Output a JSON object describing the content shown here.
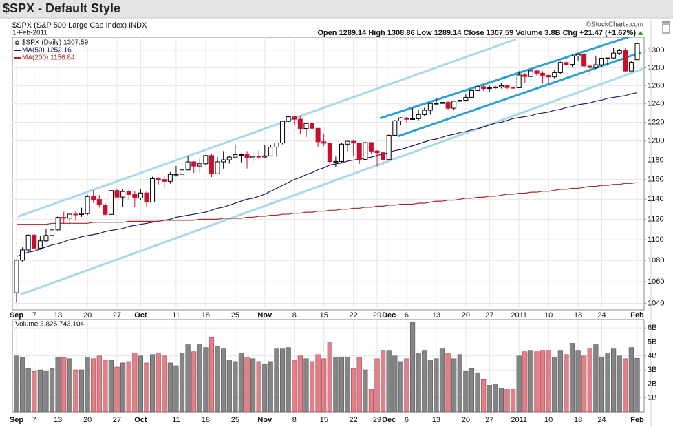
{
  "chart_data": {
    "type": "candlestick",
    "title": "$SPX - Default Style",
    "symbol_line": "$SPX (S&P 500 Large Cap Index) INDX",
    "source": "©StockCharts.com",
    "date": "1-Feb-2011",
    "quote": "Open 1289.14 High 1308.86 Low 1289.14 Close 1307.59 Volume 3.8B Chg +21.47 (+1.67%)",
    "categories": [
      "Sep",
      null,
      null,
      "7",
      null,
      null,
      null,
      "13",
      null,
      null,
      null,
      null,
      "20",
      null,
      null,
      null,
      null,
      "27",
      null,
      null,
      null,
      "Oct",
      null,
      null,
      null,
      null,
      null,
      "11",
      null,
      null,
      null,
      null,
      "18",
      null,
      null,
      null,
      null,
      "25",
      null,
      null,
      null,
      null,
      "Nov",
      null,
      null,
      null,
      null,
      "8",
      null,
      null,
      null,
      null,
      "15",
      null,
      null,
      null,
      null,
      "22",
      null,
      null,
      null,
      "29",
      null,
      "Dec",
      null,
      null,
      "6",
      null,
      null,
      null,
      null,
      "13",
      null,
      null,
      null,
      null,
      "20",
      null,
      null,
      null,
      "27",
      null,
      null,
      null,
      null,
      "2011",
      null,
      null,
      null,
      null,
      "10",
      null,
      null,
      null,
      null,
      "18",
      null,
      null,
      null,
      "24",
      null,
      null,
      null,
      null,
      null,
      "Feb"
    ],
    "price": {
      "name": "$SPX (Daily) 1307.59",
      "up_color": "#000000",
      "down_color": "#c8102e",
      "open": [
        1049.72,
        1080.29,
        1090.1,
        1104.51,
        1091.84,
        1098.87,
        1104.18,
        1109.55,
        1121.9,
        1121.1,
        1125.07,
        1124.66,
        1125.59,
        1142.71,
        1139.78,
        1134.28,
        1124.83,
        1148.67,
        1142.16,
        1147.7,
        1144.73,
        1141.2,
        1146.24,
        1137.03,
        1160.75,
        1159.97,
        1158.06,
        1165.15,
        1165.32,
        1169.77,
        1178.1,
        1173.81,
        1176.19,
        1184.71,
        1165.9,
        1178.17,
        1180.26,
        1183.08,
        1185.62,
        1185.64,
        1182.45,
        1183.78,
        1183.26,
        1184.38,
        1193.57,
        1197.96,
        1221.06,
        1225.85,
        1223.25,
        1213.4,
        1218.71,
        1213.54,
        1199.21,
        1197.75,
        1178.34,
        1178.59,
        1196.69,
        1199.73,
        1197.84,
        1180.73,
        1198.35,
        1189.4,
        1187.76,
        1180.55,
        1206.07,
        1221.53,
        1224.71,
        1223.12,
        1223.75,
        1228.28,
        1233.0,
        1240.4,
        1240.46,
        1241.59,
        1235.23,
        1242.87,
        1243.91,
        1247.08,
        1254.6,
        1258.84,
        1256.77,
        1257.54,
        1258.51,
        1259.78,
        1257.88,
        1257.64,
        1271.87,
        1270.2,
        1276.56,
        1273.85,
        1271.5,
        1269.75,
        1274.48,
        1285.96,
        1283.76,
        1293.24,
        1295.02,
        1281.92,
        1280.26,
        1283.35,
        1290.84,
        1291.18,
        1296.63,
        1299.54,
        1276.34,
        1289.14
      ],
      "high": [
        1081.3,
        1092.6,
        1105.1,
        1105.6,
        1103.3,
        1110.3,
        1110.9,
        1123.0,
        1127.4,
        1126.4,
        1128.5,
        1131.5,
        1144.4,
        1148.9,
        1144.4,
        1136.1,
        1148.9,
        1149.9,
        1149.9,
        1150.3,
        1148.6,
        1150.3,
        1148.2,
        1162.8,
        1162.3,
        1163.9,
        1167.7,
        1173.9,
        1173.0,
        1184.4,
        1178.9,
        1181.4,
        1185.5,
        1186.1,
        1182.9,
        1189.4,
        1184.8,
        1196.1,
        1187.1,
        1189.5,
        1187.9,
        1190.3,
        1195.8,
        1195.9,
        1198.3,
        1221.3,
        1227.1,
        1227.1,
        1226.8,
        1218.8,
        1219.4,
        1213.5,
        1207.4,
        1197.8,
        1183.6,
        1198.1,
        1199.9,
        1200.8,
        1197.8,
        1198.9,
        1198.9,
        1190.4,
        1187.8,
        1207.6,
        1222.5,
        1225.6,
        1225.7,
        1235.1,
        1233.7,
        1235.8,
        1241.0,
        1246.7,
        1246.6,
        1242.8,
        1243.7,
        1245.0,
        1250.4,
        1255.0,
        1259.4,
        1260.6,
        1259.9,
        1259.9,
        1262.6,
        1260.0,
        1260.0,
        1276.2,
        1274.1,
        1277.6,
        1278.2,
        1276.2,
        1271.5,
        1277.6,
        1286.9,
        1287.0,
        1294.8,
        1296.1,
        1297.5,
        1283.8,
        1293.8,
        1291.3,
        1291.3,
        1302.7,
        1301.3,
        1302.6,
        1287.2,
        1308.86
      ],
      "low": [
        1041.0,
        1078.5,
        1089.0,
        1090.8,
        1090.2,
        1097.9,
        1101.7,
        1108.0,
        1115.6,
        1114.6,
        1118.6,
        1122.4,
        1124.0,
        1136.2,
        1131.6,
        1122.8,
        1124.8,
        1141.7,
        1131.9,
        1139.7,
        1131.9,
        1139.4,
        1131.9,
        1136.8,
        1154.9,
        1151.4,
        1155.7,
        1162.9,
        1157.3,
        1169.6,
        1166.7,
        1167.1,
        1174.6,
        1162.5,
        1166.7,
        1171.2,
        1176.4,
        1182.7,
        1177.7,
        1171.2,
        1178.3,
        1180.8,
        1181.8,
        1184.4,
        1183.6,
        1196.5,
        1220.3,
        1217.0,
        1207.7,
        1204.3,
        1206.6,
        1194.1,
        1194.6,
        1173.0,
        1173.0,
        1176.8,
        1189.4,
        1184.7,
        1176.0,
        1180.7,
        1186.6,
        1173.6,
        1173.6,
        1179.5,
        1205.0,
        1216.6,
        1218.7,
        1222.6,
        1222.0,
        1227.0,
        1228.3,
        1240.4,
        1240.4,
        1232.9,
        1232.9,
        1240.6,
        1242.6,
        1246.2,
        1254.2,
        1254.2,
        1252.9,
        1256.2,
        1256.8,
        1256.2,
        1253.9,
        1257.6,
        1262.7,
        1265.4,
        1270.4,
        1262.2,
        1262.2,
        1268.2,
        1273.1,
        1282.1,
        1280.6,
        1288.2,
        1279.7,
        1271.3,
        1278.6,
        1281.1,
        1282.1,
        1290.3,
        1294.4,
        1275.1,
        1276.3,
        1289.14
      ],
      "close": [
        1080.29,
        1090.1,
        1104.51,
        1091.84,
        1098.87,
        1104.18,
        1109.55,
        1121.9,
        1121.1,
        1125.07,
        1124.66,
        1125.59,
        1142.71,
        1139.78,
        1134.28,
        1124.83,
        1148.67,
        1142.16,
        1147.7,
        1144.73,
        1141.2,
        1146.24,
        1137.03,
        1160.75,
        1159.97,
        1158.06,
        1165.15,
        1165.32,
        1169.77,
        1178.1,
        1173.81,
        1176.19,
        1184.71,
        1165.9,
        1178.17,
        1180.26,
        1183.08,
        1185.62,
        1185.64,
        1182.45,
        1183.78,
        1183.26,
        1184.38,
        1193.57,
        1197.96,
        1221.06,
        1225.85,
        1223.25,
        1213.4,
        1218.71,
        1213.54,
        1199.21,
        1197.75,
        1178.34,
        1178.59,
        1196.69,
        1199.73,
        1197.84,
        1180.73,
        1198.35,
        1189.4,
        1187.76,
        1180.55,
        1206.07,
        1221.53,
        1224.71,
        1223.12,
        1223.75,
        1228.28,
        1233.0,
        1240.4,
        1240.46,
        1241.59,
        1235.23,
        1242.87,
        1243.91,
        1247.08,
        1254.6,
        1258.84,
        1256.77,
        1257.54,
        1258.51,
        1259.78,
        1257.88,
        1257.64,
        1271.87,
        1270.2,
        1276.56,
        1273.85,
        1271.5,
        1269.75,
        1274.48,
        1285.96,
        1283.76,
        1293.24,
        1295.02,
        1281.92,
        1280.26,
        1283.35,
        1290.84,
        1291.18,
        1296.63,
        1299.54,
        1276.34,
        1286.12,
        1307.59
      ]
    },
    "series": [
      {
        "name": "MA(50) 1252.16",
        "color": "#1c1c5e",
        "values": [
          1084,
          1086,
          1088,
          1089,
          1091,
          1093,
          1095,
          1096,
          1098,
          1100,
          1101,
          1103,
          1104,
          1105,
          1106,
          1108,
          1109,
          1110,
          1111,
          1113,
          1114,
          1115,
          1116,
          1117,
          1118,
          1119,
          1120,
          1122,
          1123,
          1124,
          1125,
          1126,
          1127,
          1129,
          1131,
          1132,
          1134,
          1136,
          1138,
          1140,
          1141,
          1143,
          1145,
          1148,
          1151,
          1154,
          1157,
          1160,
          1162,
          1165,
          1167,
          1170,
          1172,
          1175,
          1176,
          1177,
          1179,
          1180,
          1181,
          1182,
          1183,
          1185,
          1186,
          1188,
          1190,
          1191,
          1193,
          1195,
          1197,
          1199,
          1201,
          1202,
          1204,
          1206,
          1207,
          1209,
          1210,
          1212,
          1213,
          1215,
          1217,
          1219,
          1220,
          1222,
          1224,
          1225,
          1226,
          1227,
          1229,
          1230,
          1231,
          1233,
          1234,
          1236,
          1237,
          1239,
          1240,
          1241,
          1243,
          1244,
          1246,
          1247,
          1248,
          1249,
          1251,
          1252.16
        ]
      },
      {
        "name": "MA(200) 1156.84",
        "color": "#a52a2a",
        "values": [
          1115,
          1115,
          1115,
          1115,
          1115,
          1115,
          1116,
          1116,
          1116,
          1116,
          1116,
          1116,
          1116,
          1117,
          1117,
          1117,
          1117,
          1117,
          1117,
          1118,
          1118,
          1118,
          1118,
          1118,
          1118,
          1119,
          1119,
          1119,
          1119,
          1119,
          1119,
          1120,
          1120,
          1120,
          1120,
          1121,
          1121,
          1121,
          1121,
          1122,
          1122,
          1123,
          1123,
          1124,
          1124,
          1125,
          1125,
          1126,
          1126,
          1127,
          1127,
          1128,
          1128,
          1129,
          1129,
          1130,
          1130,
          1131,
          1131,
          1132,
          1132,
          1133,
          1133,
          1134,
          1134,
          1135,
          1135,
          1135,
          1136,
          1136,
          1137,
          1138,
          1138,
          1139,
          1139,
          1140,
          1141,
          1141,
          1142,
          1142,
          1143,
          1143,
          1144,
          1145,
          1145,
          1146,
          1146,
          1147,
          1147,
          1148,
          1148,
          1149,
          1150,
          1150,
          1151,
          1151,
          1152,
          1153,
          1153,
          1154,
          1154,
          1155,
          1155,
          1156,
          1156,
          1156.84
        ]
      }
    ],
    "trendlines": [
      {
        "color": "#a8d8e8",
        "x": [
          0.2,
          84.5
        ],
        "values": [
          1122.5,
          1312.7
        ]
      },
      {
        "color": "#a8d8e8",
        "x": [
          0.7,
          106
        ],
        "values": [
          1048.2,
          1278.9
        ]
      },
      {
        "color": "#2a9fd6",
        "x": [
          61.5,
          104.9
        ],
        "values": [
          1224.3,
          1318.3
        ]
      },
      {
        "color": "#2a9fd6",
        "x": [
          64.5,
          105.7
        ],
        "values": [
          1205,
          1297.6
        ]
      }
    ],
    "ylim": [
      1034,
      1315
    ],
    "yticks": [
      1040,
      1060,
      1080,
      1100,
      1120,
      1140,
      1160,
      1180,
      1200,
      1220,
      1240,
      1260,
      1280,
      1300
    ],
    "log_scale": true,
    "grid": true,
    "volume": {
      "name": "Volume 3,825,743,104",
      "up_color": "#858585",
      "down_color": "#e08088",
      "values": [
        4.0,
        3.9,
        3.1,
        2.9,
        3.0,
        2.9,
        3.1,
        3.9,
        3.9,
        3.8,
        3.0,
        3.0,
        3.9,
        3.8,
        4.0,
        3.7,
        3.7,
        3.2,
        3.5,
        3.6,
        4.2,
        4.0,
        3.5,
        4.1,
        4.2,
        4.0,
        3.5,
        3.3,
        4.2,
        4.8,
        4.3,
        4.8,
        4.6,
        5.3,
        4.7,
        4.5,
        3.7,
        3.6,
        4.2,
        3.9,
        3.8,
        3.6,
        3.4,
        3.6,
        4.5,
        4.5,
        4.6,
        3.7,
        4.0,
        3.8,
        3.6,
        4.1,
        3.8,
        5.0,
        3.9,
        3.9,
        3.9,
        3.1,
        3.9,
        3.0,
        1.6,
        3.8,
        4.4,
        4.4,
        4.0,
        3.6,
        3.8,
        6.4,
        4.2,
        4.4,
        3.7,
        3.8,
        4.5,
        4.2,
        3.8,
        4.1,
        2.9,
        3.1,
        2.8,
        2.3,
        1.9,
        2.0,
        1.7,
        1.6,
        1.6,
        4.0,
        4.3,
        4.4,
        4.3,
        4.4,
        4.4,
        3.9,
        4.4,
        4.1,
        4.9,
        4.4,
        4.0,
        4.5,
        4.8,
        3.9,
        4.2,
        4.5,
        4.0,
        3.8,
        4.6,
        3.83
      ],
      "ylim": [
        0,
        6.6
      ],
      "yticks": [
        {
          "value": 1,
          "label": "1B"
        },
        {
          "value": 2,
          "label": "2B"
        },
        {
          "value": 3,
          "label": "3B"
        },
        {
          "value": 4,
          "label": "4B"
        },
        {
          "value": 5,
          "label": "5B"
        },
        {
          "value": 6,
          "label": "6B"
        }
      ]
    }
  }
}
